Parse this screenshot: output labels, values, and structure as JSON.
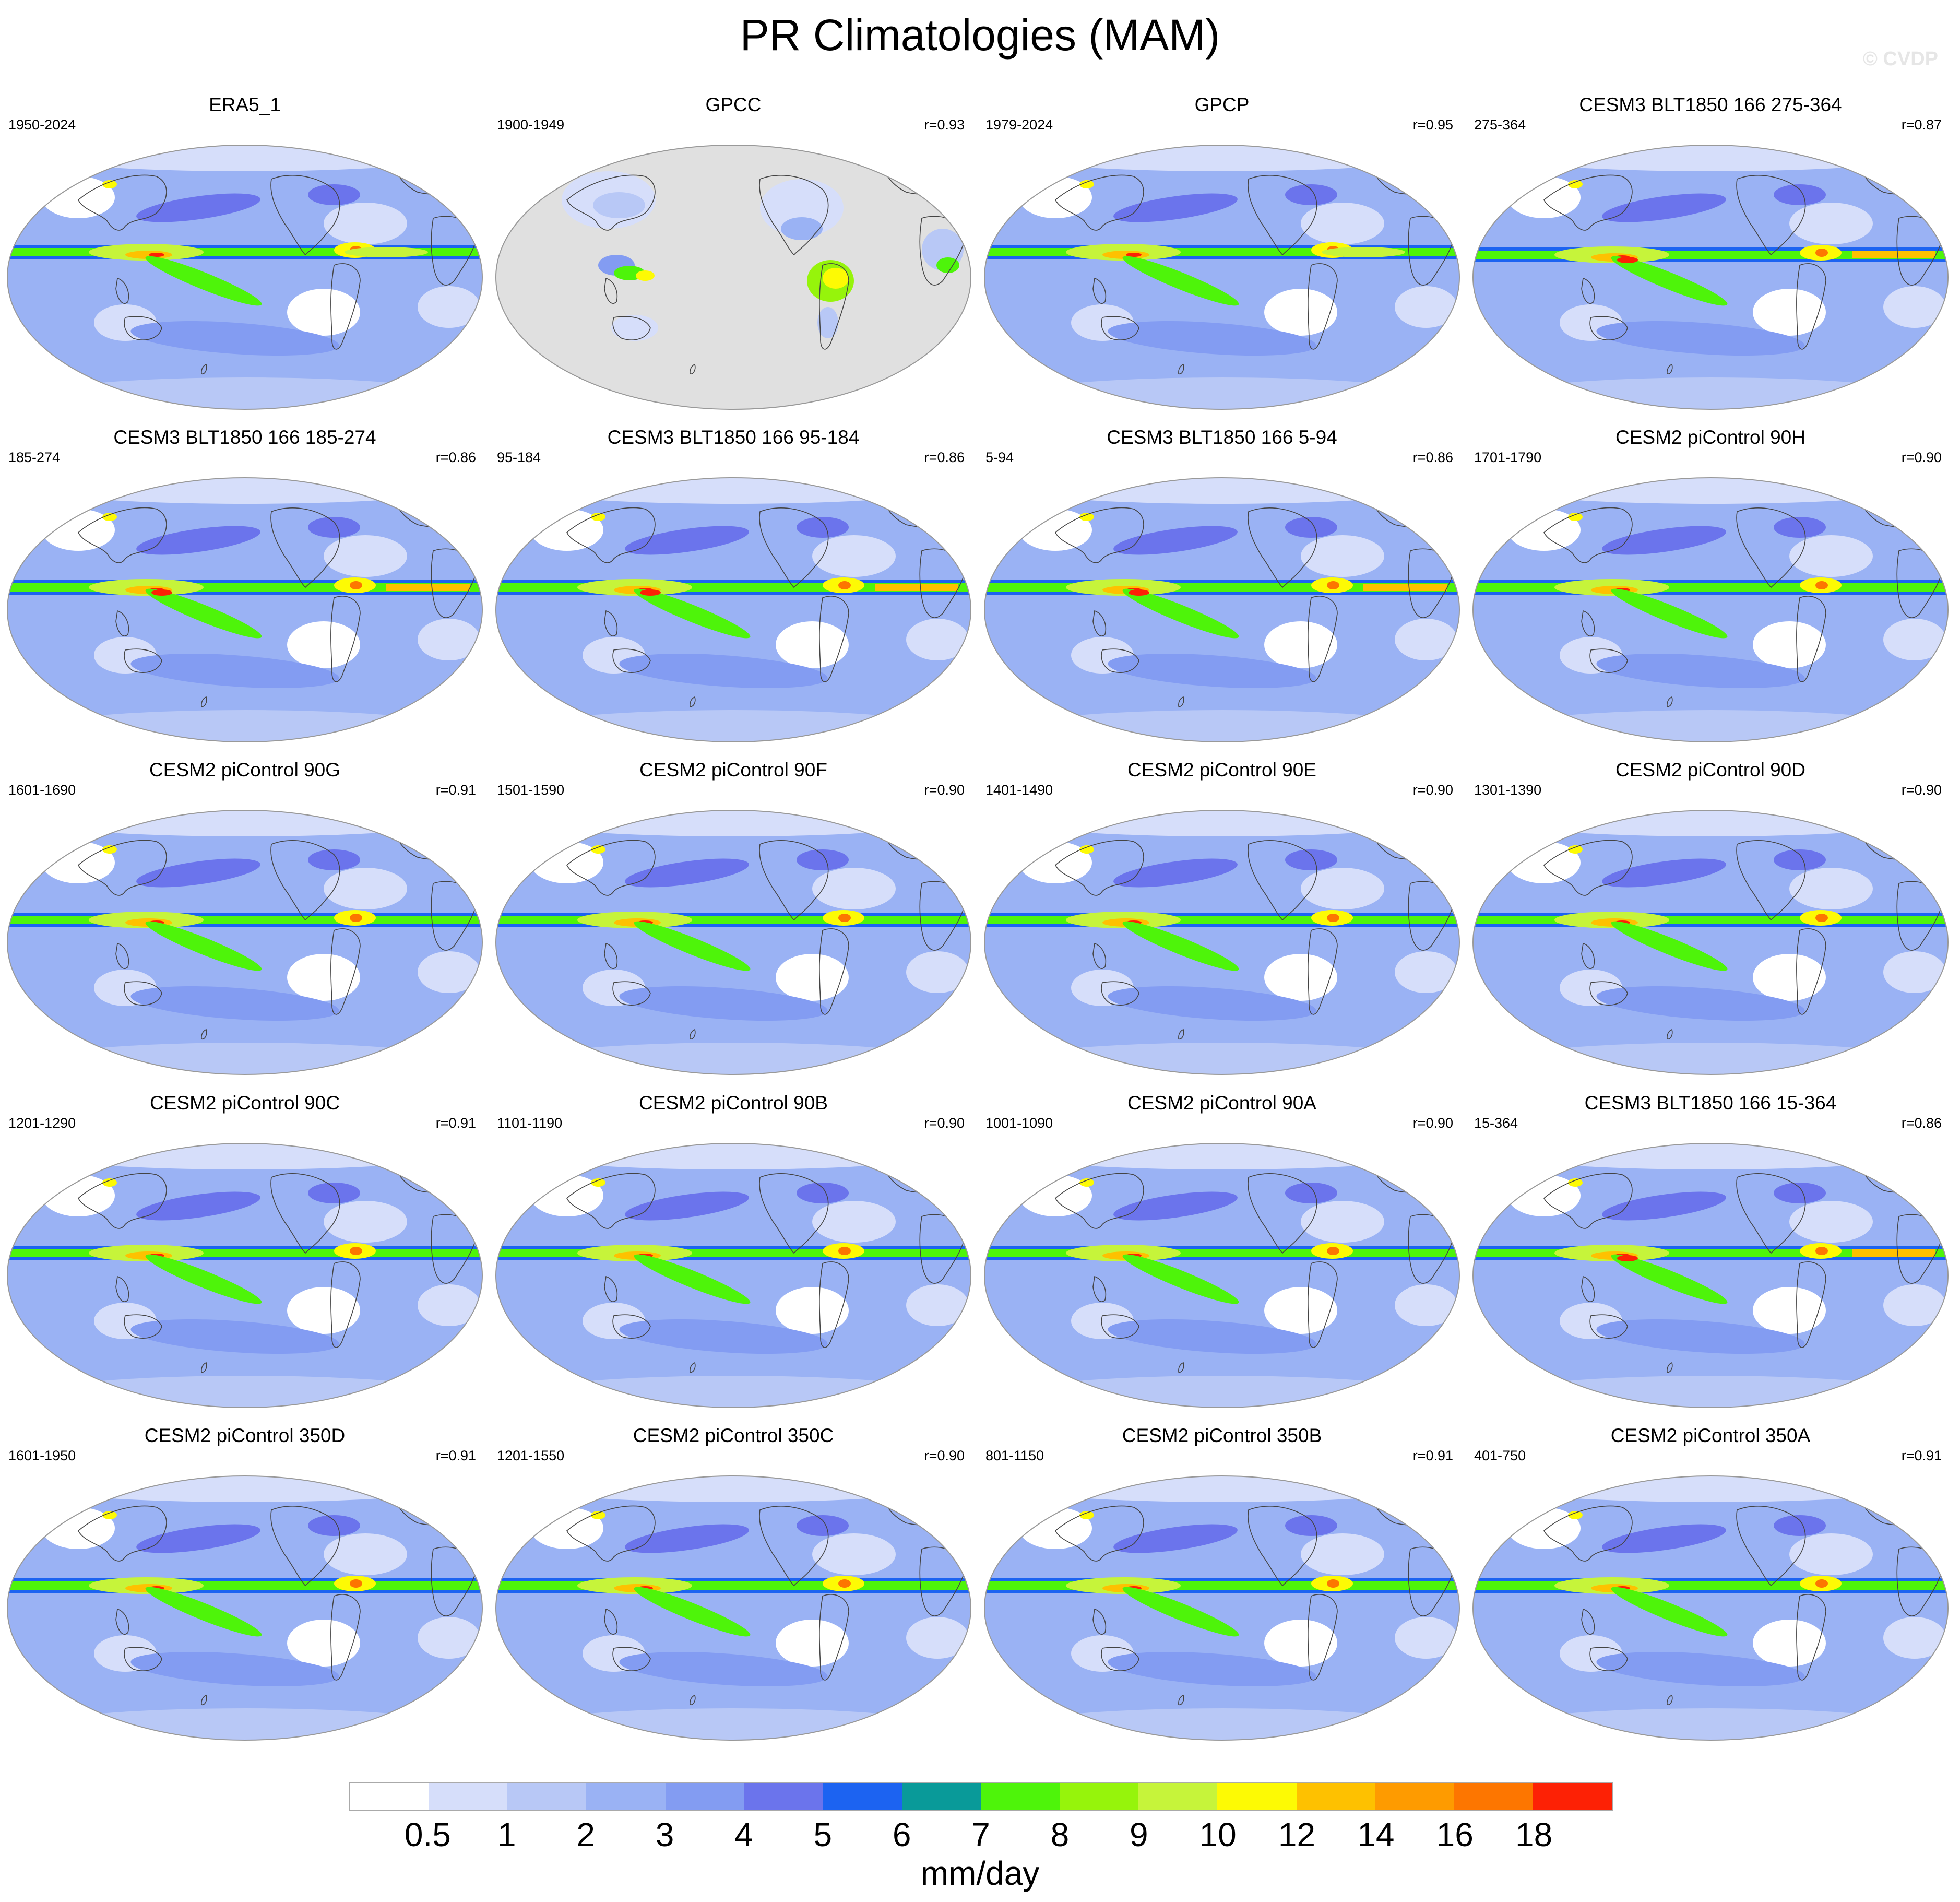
{
  "title": "PR Climatologies (MAM)",
  "watermark": "© CVDP",
  "units": "mm/day",
  "colorbar": {
    "labels": [
      "0.5",
      "1",
      "2",
      "3",
      "4",
      "5",
      "6",
      "7",
      "8",
      "9",
      "10",
      "12",
      "14",
      "16",
      "18"
    ],
    "colors": [
      "#ffffff",
      "#d6defa",
      "#b8c8f6",
      "#9ab2f4",
      "#839cf2",
      "#6b74ec",
      "#1c63f1",
      "#099a99",
      "#4ef40a",
      "#96f40b",
      "#c6f43a",
      "#fdfa04",
      "#fec100",
      "#fe9b00",
      "#fd7600",
      "#fd2105"
    ]
  },
  "panels": [
    {
      "title": "ERA5_1",
      "years": "1950-2024",
      "r": "",
      "variant": "obs"
    },
    {
      "title": "GPCC",
      "years": "1900-1949",
      "r": "r=0.93",
      "variant": "land"
    },
    {
      "title": "GPCP",
      "years": "1979-2024",
      "r": "r=0.95",
      "variant": "obs"
    },
    {
      "title": "CESM3 BLT1850 166 275-364",
      "years": "275-364",
      "r": "r=0.87",
      "variant": "cesm3"
    },
    {
      "title": "CESM3 BLT1850 166 185-274",
      "years": "185-274",
      "r": "r=0.86",
      "variant": "cesm3"
    },
    {
      "title": "CESM3 BLT1850 166 95-184",
      "years": "95-184",
      "r": "r=0.86",
      "variant": "cesm3"
    },
    {
      "title": "CESM3 BLT1850 166 5-94",
      "years": "5-94",
      "r": "r=0.86",
      "variant": "cesm3"
    },
    {
      "title": "CESM2 piControl 90H",
      "years": "1701-1790",
      "r": "r=0.90",
      "variant": "cesm2"
    },
    {
      "title": "CESM2 piControl 90G",
      "years": "1601-1690",
      "r": "r=0.91",
      "variant": "cesm2"
    },
    {
      "title": "CESM2 piControl 90F",
      "years": "1501-1590",
      "r": "r=0.90",
      "variant": "cesm2"
    },
    {
      "title": "CESM2 piControl 90E",
      "years": "1401-1490",
      "r": "r=0.90",
      "variant": "cesm2"
    },
    {
      "title": "CESM2 piControl 90D",
      "years": "1301-1390",
      "r": "r=0.90",
      "variant": "cesm2"
    },
    {
      "title": "CESM2 piControl 90C",
      "years": "1201-1290",
      "r": "r=0.91",
      "variant": "cesm2"
    },
    {
      "title": "CESM2 piControl 90B",
      "years": "1101-1190",
      "r": "r=0.90",
      "variant": "cesm2"
    },
    {
      "title": "CESM2 piControl 90A",
      "years": "1001-1090",
      "r": "r=0.90",
      "variant": "cesm2"
    },
    {
      "title": "CESM3 BLT1850 166 15-364",
      "years": "15-364",
      "r": "r=0.86",
      "variant": "cesm3"
    },
    {
      "title": "CESM2 piControl 350D",
      "years": "1601-1950",
      "r": "r=0.91",
      "variant": "cesm2"
    },
    {
      "title": "CESM2 piControl 350C",
      "years": "1201-1550",
      "r": "r=0.90",
      "variant": "cesm2"
    },
    {
      "title": "CESM2 piControl 350B",
      "years": "801-1150",
      "r": "r=0.91",
      "variant": "cesm2"
    },
    {
      "title": "CESM2 piControl 350A",
      "years": "401-750",
      "r": "r=0.91",
      "variant": "cesm2"
    }
  ]
}
